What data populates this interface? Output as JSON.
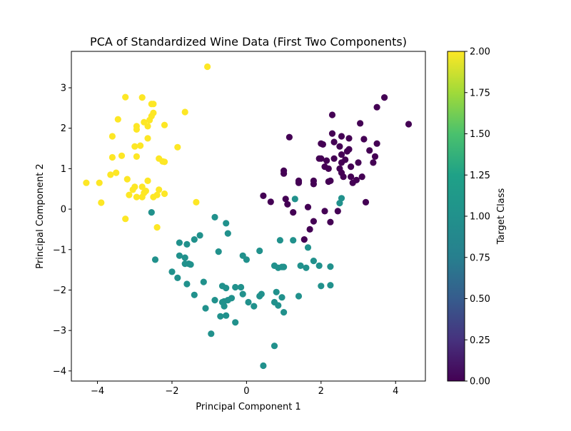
{
  "chart_data": {
    "type": "scatter",
    "title": "PCA of Standardized Wine Data (First Two Components)",
    "xlabel": "Principal Component 1",
    "ylabel": "Principal Component 2",
    "xlim": [
      -4.7,
      4.8
    ],
    "ylim": [
      -4.25,
      3.9
    ],
    "xticks": [
      -4,
      -2,
      0,
      2,
      4
    ],
    "yticks": [
      -4,
      -3,
      -2,
      -1,
      0,
      1,
      2,
      3
    ],
    "grid": false,
    "colorbar": {
      "label": "Target Class",
      "range": [
        0,
        2
      ],
      "colormap": "viridis",
      "ticks": [
        "0.00",
        "0.25",
        "0.50",
        "0.75",
        "1.00",
        "1.25",
        "1.50",
        "1.75",
        "2.00"
      ]
    },
    "colors": {
      "class_0": "#440154",
      "class_1": "#21918c",
      "class_2": "#fde725"
    },
    "series": [
      {
        "class": 0,
        "points": [
          [
            2.3,
            2.33
          ],
          [
            2.0,
            1.62
          ],
          [
            2.3,
            1.87
          ],
          [
            2.55,
            1.8
          ],
          [
            2.75,
            1.75
          ],
          [
            3.05,
            2.12
          ],
          [
            3.5,
            2.52
          ],
          [
            3.7,
            2.76
          ],
          [
            4.35,
            2.1
          ],
          [
            3.15,
            1.73
          ],
          [
            3.5,
            1.62
          ],
          [
            2.35,
            1.66
          ],
          [
            2.05,
            1.6
          ],
          [
            2.5,
            1.55
          ],
          [
            2.75,
            1.48
          ],
          [
            2.7,
            1.43
          ],
          [
            3.3,
            1.45
          ],
          [
            3.45,
            1.3
          ],
          [
            2.55,
            1.35
          ],
          [
            2.0,
            1.25
          ],
          [
            2.15,
            1.2
          ],
          [
            2.35,
            1.25
          ],
          [
            2.55,
            1.15
          ],
          [
            2.65,
            1.22
          ],
          [
            3.0,
            1.15
          ],
          [
            3.4,
            1.15
          ],
          [
            2.1,
            1.05
          ],
          [
            2.2,
            1.0
          ],
          [
            2.5,
            1.0
          ],
          [
            2.8,
            1.05
          ],
          [
            2.55,
            0.9
          ],
          [
            2.6,
            0.8
          ],
          [
            2.8,
            0.8
          ],
          [
            2.85,
            0.65
          ],
          [
            2.95,
            0.72
          ],
          [
            3.1,
            0.8
          ],
          [
            3.2,
            0.17
          ],
          [
            1.15,
            1.78
          ],
          [
            1.95,
            1.25
          ],
          [
            2.25,
            0.7
          ],
          [
            2.2,
            0.68
          ],
          [
            1.8,
            0.62
          ],
          [
            1.8,
            0.7
          ],
          [
            1.4,
            0.7
          ],
          [
            1.4,
            0.65
          ],
          [
            1.0,
            0.95
          ],
          [
            1.0,
            0.88
          ],
          [
            0.45,
            0.33
          ],
          [
            0.65,
            0.18
          ],
          [
            1.05,
            0.25
          ],
          [
            1.1,
            0.12
          ],
          [
            1.25,
            -0.08
          ],
          [
            1.65,
            0.05
          ],
          [
            2.1,
            -0.05
          ],
          [
            2.45,
            -0.05
          ],
          [
            1.8,
            -0.3
          ],
          [
            2.25,
            -0.32
          ],
          [
            1.7,
            -0.5
          ],
          [
            1.55,
            -0.75
          ]
        ]
      },
      {
        "class": 1,
        "points": [
          [
            -2.55,
            -0.08
          ],
          [
            -2.45,
            -1.25
          ],
          [
            -0.85,
            -0.2
          ],
          [
            -0.55,
            -0.35
          ],
          [
            -0.5,
            -0.6
          ],
          [
            -1.25,
            -0.65
          ],
          [
            -1.4,
            -0.75
          ],
          [
            -1.8,
            -0.83
          ],
          [
            -1.6,
            -0.87
          ],
          [
            -1.8,
            -1.15
          ],
          [
            -1.65,
            -1.2
          ],
          [
            -1.65,
            -1.35
          ],
          [
            -1.55,
            -1.35
          ],
          [
            -1.5,
            -1.37
          ],
          [
            -0.75,
            -1.05
          ],
          [
            -0.1,
            -1.15
          ],
          [
            0.0,
            -1.25
          ],
          [
            0.35,
            -1.03
          ],
          [
            0.9,
            -0.77
          ],
          [
            1.25,
            -0.77
          ],
          [
            1.65,
            -0.95
          ],
          [
            1.8,
            -1.28
          ],
          [
            1.95,
            -1.4
          ],
          [
            2.25,
            -1.42
          ],
          [
            1.45,
            -1.4
          ],
          [
            1.6,
            -1.45
          ],
          [
            0.75,
            -1.4
          ],
          [
            0.85,
            -1.45
          ],
          [
            0.95,
            -1.43
          ],
          [
            1.0,
            -1.43
          ],
          [
            -2.0,
            -1.55
          ],
          [
            -1.85,
            -1.7
          ],
          [
            -1.6,
            -1.85
          ],
          [
            -1.15,
            -1.8
          ],
          [
            -1.4,
            -2.12
          ],
          [
            -0.65,
            -1.9
          ],
          [
            -0.55,
            -1.95
          ],
          [
            -0.3,
            -1.93
          ],
          [
            -0.15,
            -1.93
          ],
          [
            -0.1,
            -2.1
          ],
          [
            -0.4,
            -2.2
          ],
          [
            -0.5,
            -2.25
          ],
          [
            -0.6,
            -2.28
          ],
          [
            -0.65,
            -2.3
          ],
          [
            -0.6,
            -2.4
          ],
          [
            -0.85,
            -2.25
          ],
          [
            -1.1,
            -2.45
          ],
          [
            0.05,
            -2.3
          ],
          [
            0.2,
            -2.4
          ],
          [
            0.35,
            -2.15
          ],
          [
            0.4,
            -2.1
          ],
          [
            0.8,
            -2.05
          ],
          [
            0.95,
            -2.18
          ],
          [
            0.75,
            -2.3
          ],
          [
            0.85,
            -2.38
          ],
          [
            1.0,
            -2.55
          ],
          [
            1.4,
            -2.15
          ],
          [
            2.0,
            -1.9
          ],
          [
            2.25,
            -1.88
          ],
          [
            2.5,
            0.15
          ],
          [
            2.55,
            0.27
          ],
          [
            1.3,
            0.25
          ],
          [
            -0.7,
            -2.65
          ],
          [
            -0.55,
            -2.63
          ],
          [
            -0.3,
            -2.8
          ],
          [
            -0.95,
            -3.08
          ],
          [
            0.75,
            -3.38
          ],
          [
            0.45,
            -3.87
          ]
        ]
      },
      {
        "class": 2,
        "points": [
          [
            -1.05,
            3.52
          ],
          [
            -3.25,
            2.77
          ],
          [
            -2.8,
            2.76
          ],
          [
            -2.55,
            2.6
          ],
          [
            -2.5,
            2.6
          ],
          [
            -3.45,
            2.22
          ],
          [
            -2.5,
            2.38
          ],
          [
            -2.55,
            2.3
          ],
          [
            -1.65,
            2.4
          ],
          [
            -2.75,
            2.15
          ],
          [
            -2.6,
            2.2
          ],
          [
            -2.95,
            2.05
          ],
          [
            -2.95,
            1.97
          ],
          [
            -2.65,
            2.05
          ],
          [
            -2.2,
            2.08
          ],
          [
            -3.6,
            1.8
          ],
          [
            -2.65,
            1.75
          ],
          [
            -3.0,
            1.55
          ],
          [
            -2.85,
            1.57
          ],
          [
            -1.85,
            1.53
          ],
          [
            -3.6,
            1.28
          ],
          [
            -3.35,
            1.32
          ],
          [
            -2.95,
            1.3
          ],
          [
            -2.35,
            1.25
          ],
          [
            -2.25,
            1.18
          ],
          [
            -2.2,
            1.17
          ],
          [
            -3.5,
            0.9
          ],
          [
            -3.65,
            0.85
          ],
          [
            -3.2,
            0.74
          ],
          [
            -2.65,
            0.7
          ],
          [
            -4.3,
            0.65
          ],
          [
            -3.95,
            0.65
          ],
          [
            -3.0,
            0.55
          ],
          [
            -2.8,
            0.55
          ],
          [
            -3.05,
            0.48
          ],
          [
            -2.7,
            0.45
          ],
          [
            -2.35,
            0.48
          ],
          [
            -3.15,
            0.35
          ],
          [
            -2.95,
            0.3
          ],
          [
            -2.8,
            0.3
          ],
          [
            -2.75,
            0.4
          ],
          [
            -2.4,
            0.35
          ],
          [
            -2.2,
            0.38
          ],
          [
            -2.5,
            0.3
          ],
          [
            -3.9,
            0.16
          ],
          [
            -1.35,
            0.17
          ],
          [
            -3.25,
            -0.24
          ],
          [
            -2.4,
            -0.45
          ]
        ]
      }
    ]
  }
}
